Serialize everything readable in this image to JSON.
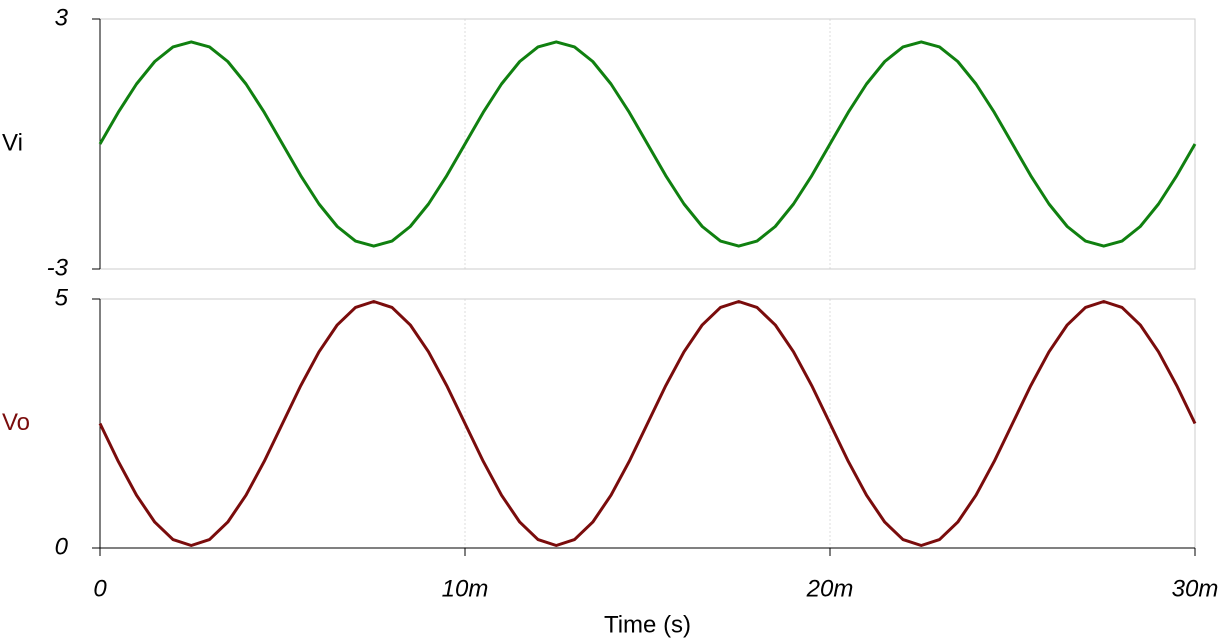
{
  "chart_data": [
    {
      "type": "line",
      "ylabel": "Vi",
      "color": "#108010",
      "x": [
        0,
        0.0005,
        0.001,
        0.0015,
        0.002,
        0.0025,
        0.003,
        0.0035,
        0.004,
        0.0045,
        0.005,
        0.0055,
        0.006,
        0.0065,
        0.007,
        0.0075,
        0.008,
        0.0085,
        0.009,
        0.0095,
        0.01,
        0.0105,
        0.011,
        0.0115,
        0.012,
        0.0125,
        0.013,
        0.0135,
        0.014,
        0.0145,
        0.015,
        0.0155,
        0.016,
        0.0165,
        0.017,
        0.0175,
        0.018,
        0.0185,
        0.019,
        0.0195,
        0.02,
        0.0205,
        0.021,
        0.0215,
        0.022,
        0.0225,
        0.023,
        0.0235,
        0.024,
        0.0245,
        0.025,
        0.0255,
        0.026,
        0.0265,
        0.027,
        0.0275,
        0.028,
        0.0285,
        0.029,
        0.0295,
        0.03
      ],
      "values": [
        0,
        0.76,
        1.44,
        1.98,
        2.33,
        2.45,
        2.33,
        1.98,
        1.44,
        0.76,
        0,
        -0.76,
        -1.44,
        -1.98,
        -2.33,
        -2.45,
        -2.33,
        -1.98,
        -1.44,
        -0.76,
        0,
        0.76,
        1.44,
        1.98,
        2.33,
        2.45,
        2.33,
        1.98,
        1.44,
        0.76,
        0,
        -0.76,
        -1.44,
        -1.98,
        -2.33,
        -2.45,
        -2.33,
        -1.98,
        -1.44,
        -0.76,
        0,
        0.76,
        1.44,
        1.98,
        2.33,
        2.45,
        2.33,
        1.98,
        1.44,
        0.76,
        0,
        -0.76,
        -1.44,
        -1.98,
        -2.33,
        -2.45,
        -2.33,
        -1.98,
        -1.44,
        -0.76,
        0
      ],
      "xlim": [
        0,
        0.03
      ],
      "ylim": [
        -3,
        3
      ],
      "yticks": [
        -3,
        3
      ]
    },
    {
      "type": "line",
      "ylabel": "Vo",
      "color": "#7a0c0c",
      "xlabel": "Time (s)",
      "x": [
        0,
        0.0005,
        0.001,
        0.0015,
        0.002,
        0.0025,
        0.003,
        0.0035,
        0.004,
        0.0045,
        0.005,
        0.0055,
        0.006,
        0.0065,
        0.007,
        0.0075,
        0.008,
        0.0085,
        0.009,
        0.0095,
        0.01,
        0.0105,
        0.011,
        0.0115,
        0.012,
        0.0125,
        0.013,
        0.0135,
        0.014,
        0.0145,
        0.015,
        0.0155,
        0.016,
        0.0165,
        0.017,
        0.0175,
        0.018,
        0.0185,
        0.019,
        0.0195,
        0.02,
        0.0205,
        0.021,
        0.0215,
        0.022,
        0.0225,
        0.023,
        0.0235,
        0.024,
        0.0245,
        0.025,
        0.0255,
        0.026,
        0.0265,
        0.027,
        0.0275,
        0.028,
        0.0285,
        0.029,
        0.0295,
        0.03
      ],
      "values": [
        2.5,
        1.74,
        1.06,
        0.52,
        0.17,
        0.05,
        0.17,
        0.52,
        1.06,
        1.74,
        2.5,
        3.26,
        3.94,
        4.48,
        4.83,
        4.95,
        4.83,
        4.48,
        3.94,
        3.26,
        2.5,
        1.74,
        1.06,
        0.52,
        0.17,
        0.05,
        0.17,
        0.52,
        1.06,
        1.74,
        2.5,
        3.26,
        3.94,
        4.48,
        4.83,
        4.95,
        4.83,
        4.48,
        3.94,
        3.26,
        2.5,
        1.74,
        1.06,
        0.52,
        0.17,
        0.05,
        0.17,
        0.52,
        1.06,
        1.74,
        2.5,
        3.26,
        3.94,
        4.48,
        4.83,
        4.95,
        4.83,
        4.48,
        3.94,
        3.26,
        2.5
      ],
      "xlim": [
        0,
        0.03
      ],
      "ylim": [
        0,
        5
      ],
      "yticks": [
        0,
        5
      ],
      "xticks": [
        0,
        {
          "value": 0.01,
          "label": "10m"
        },
        {
          "value": 0.02,
          "label": "20m"
        },
        {
          "value": 0.03,
          "label": "30m"
        }
      ]
    }
  ]
}
